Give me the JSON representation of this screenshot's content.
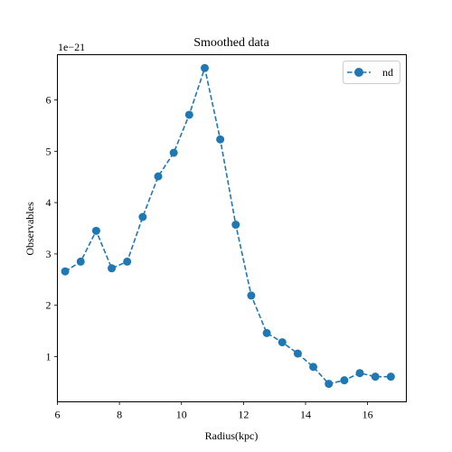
{
  "chart_data": {
    "type": "line",
    "title": "Smoothed data",
    "xlabel": "Radius(kpc)",
    "ylabel": "Observables",
    "offset_label": "1e−21",
    "xlim": [
      6.0,
      17.25
    ],
    "ylim": [
      0.12,
      6.88
    ],
    "x_ticks": [
      6,
      8,
      10,
      12,
      14,
      16
    ],
    "y_ticks": [
      1,
      2,
      3,
      4,
      5,
      6
    ],
    "grid": false,
    "legend_position": "top-right",
    "series": [
      {
        "name": "nd",
        "color": "#1f77b4",
        "line_style": "dashed",
        "marker": "circle",
        "x": [
          6.25,
          6.75,
          7.25,
          7.75,
          8.25,
          8.75,
          9.25,
          9.75,
          10.25,
          10.75,
          11.25,
          11.75,
          12.25,
          12.75,
          13.25,
          13.75,
          14.25,
          14.75,
          15.25,
          15.75,
          16.25,
          16.75
        ],
        "y": [
          2.66,
          2.85,
          3.45,
          2.72,
          2.85,
          3.72,
          4.51,
          4.97,
          5.71,
          6.62,
          5.23,
          3.57,
          2.19,
          1.46,
          1.28,
          1.06,
          0.8,
          0.47,
          0.54,
          0.68,
          0.61,
          0.61
        ]
      }
    ]
  }
}
